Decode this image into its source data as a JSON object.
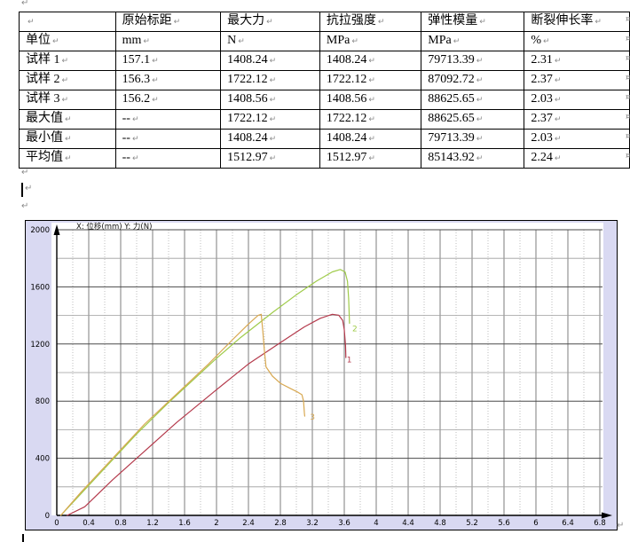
{
  "marks": {
    "paragraph_mark": "↵",
    "row_end_mark": "¤"
  },
  "table": {
    "columns": [
      "",
      "原始标距",
      "最大力",
      "抗拉强度",
      "弹性模量",
      "断裂伸长率"
    ],
    "rows": [
      [
        "单位",
        "mm",
        "N",
        "MPa",
        "MPa",
        "%"
      ],
      [
        "试样 1",
        "157.1",
        "1408.24",
        "1408.24",
        "79713.39",
        "2.31"
      ],
      [
        "试样 2",
        "156.3",
        "1722.12",
        "1722.12",
        "87092.72",
        "2.37"
      ],
      [
        "试样 3",
        "156.2",
        "1408.56",
        "1408.56",
        "88625.65",
        "2.03"
      ],
      [
        "最大值",
        "--",
        "1722.12",
        "1722.12",
        "88625.65",
        "2.37"
      ],
      [
        "最小值",
        "--",
        "1408.24",
        "1408.24",
        "79713.39",
        "2.03"
      ],
      [
        "平均值",
        "--",
        "1512.97",
        "1512.97",
        "85143.92",
        "2.24"
      ]
    ]
  },
  "chart_data": {
    "type": "line",
    "title": "X: 位移(mm)  Y: 力(N)",
    "xlabel": "位移(mm)",
    "ylabel": "力(N)",
    "xlim": [
      0,
      6.84
    ],
    "ylim": [
      0,
      2000
    ],
    "grid": true,
    "x_ticks": [
      0,
      0.4,
      0.8,
      1.2,
      1.6,
      2,
      2.4,
      2.8,
      3.2,
      3.6,
      4,
      4.4,
      4.8,
      5.2,
      5.6,
      6,
      6.4,
      6.8
    ],
    "y_ticks": [
      0,
      400,
      800,
      1200,
      1600,
      2000
    ],
    "x_minor_step": 0.2,
    "y_minor_step": 200,
    "colors": {
      "frame_bg": "#d9d9f2",
      "plot_bg": "#ffffff",
      "grid_major_h": "#4a4a4a",
      "grid_minor_h": "#9e9e9e",
      "grid_major_v": "#6e6e6e",
      "grid_minor_v": "#bdbdbd",
      "axis": "#000000"
    },
    "series": [
      {
        "name": "1",
        "color": "#b43a4c",
        "label_pos": [
          3.63,
          1070
        ],
        "points": [
          [
            0.13,
            0
          ],
          [
            0.35,
            60
          ],
          [
            0.7,
            250
          ],
          [
            1.1,
            450
          ],
          [
            1.5,
            650
          ],
          [
            2.0,
            880
          ],
          [
            2.4,
            1060
          ],
          [
            2.8,
            1210
          ],
          [
            3.1,
            1320
          ],
          [
            3.3,
            1380
          ],
          [
            3.45,
            1408
          ],
          [
            3.53,
            1402
          ],
          [
            3.58,
            1365
          ],
          [
            3.6,
            1300
          ],
          [
            3.615,
            1190
          ],
          [
            3.62,
            1105
          ]
        ]
      },
      {
        "name": "2",
        "color": "#9fcb4a",
        "label_pos": [
          3.7,
          1290
        ],
        "points": [
          [
            0.05,
            0
          ],
          [
            0.25,
            120
          ],
          [
            0.6,
            330
          ],
          [
            1.0,
            570
          ],
          [
            1.4,
            790
          ],
          [
            1.7,
            945
          ],
          [
            2.0,
            1100
          ],
          [
            2.3,
            1245
          ],
          [
            2.7,
            1420
          ],
          [
            3.0,
            1545
          ],
          [
            3.25,
            1640
          ],
          [
            3.45,
            1705
          ],
          [
            3.55,
            1722
          ],
          [
            3.61,
            1705
          ],
          [
            3.64,
            1640
          ],
          [
            3.655,
            1520
          ],
          [
            3.665,
            1345
          ]
        ]
      },
      {
        "name": "3",
        "color": "#d8a851",
        "label_pos": [
          3.17,
          670
        ],
        "points": [
          [
            0.05,
            0
          ],
          [
            0.3,
            160
          ],
          [
            0.7,
            400
          ],
          [
            1.1,
            640
          ],
          [
            1.5,
            850
          ],
          [
            1.9,
            1060
          ],
          [
            2.2,
            1230
          ],
          [
            2.4,
            1340
          ],
          [
            2.52,
            1400
          ],
          [
            2.56,
            1408
          ],
          [
            2.58,
            1290
          ],
          [
            2.6,
            1150
          ],
          [
            2.62,
            1040
          ],
          [
            2.7,
            975
          ],
          [
            2.8,
            925
          ],
          [
            2.92,
            890
          ],
          [
            3.02,
            862
          ],
          [
            3.07,
            845
          ],
          [
            3.09,
            800
          ],
          [
            3.1,
            720
          ],
          [
            3.105,
            695
          ]
        ]
      }
    ]
  }
}
